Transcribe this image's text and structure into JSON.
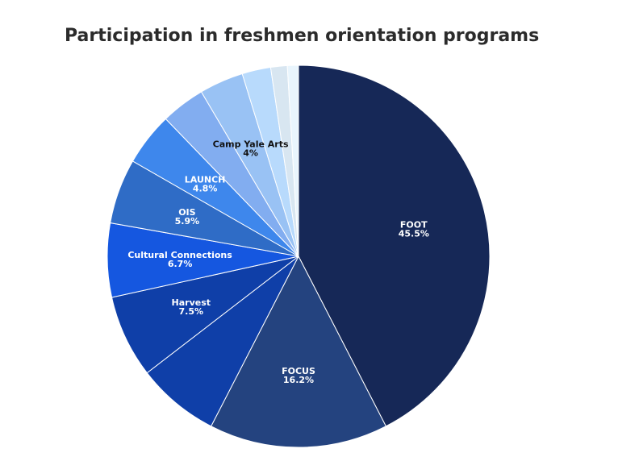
{
  "chart_data": {
    "type": "pie",
    "title": "Participation in freshmen orientation programs",
    "slices": [
      {
        "label": "FOOT",
        "value": 45.5,
        "display": "45.5%",
        "color": "#162857",
        "text_color": "#ffffff",
        "show_label": true
      },
      {
        "label": "FOCUS",
        "value": 16.2,
        "display": "16.2%",
        "color": "#24437f",
        "text_color": "#ffffff",
        "show_label": true
      },
      {
        "label": "",
        "value": 7.5,
        "display": "",
        "color": "#0f3fa8",
        "text_color": "#ffffff",
        "show_label": false
      },
      {
        "label": "Harvest",
        "value": 7.5,
        "display": "7.5%",
        "color": "#0f3fa8",
        "text_color": "#ffffff",
        "show_label": true
      },
      {
        "label": "Cultural Connections",
        "value": 6.7,
        "display": "6.7%",
        "color": "#1557e0",
        "text_color": "#ffffff",
        "show_label": true
      },
      {
        "label": "OIS",
        "value": 5.9,
        "display": "5.9%",
        "color": "#2f6cc6",
        "text_color": "#ffffff",
        "show_label": true
      },
      {
        "label": "LAUNCH",
        "value": 4.8,
        "display": "4.8%",
        "color": "#3e87ec",
        "text_color": "#ffffff",
        "show_label": true
      },
      {
        "label": "",
        "value": 4.0,
        "display": "",
        "color": "#82adf0",
        "text_color": "#111111",
        "show_label": false
      },
      {
        "label": "Camp Yale Arts",
        "value": 4.0,
        "display": "4%",
        "color": "#99c2f4",
        "text_color": "#111111",
        "show_label": true
      },
      {
        "label": "",
        "value": 2.6,
        "display": "",
        "color": "#b8dafc",
        "text_color": "#111111",
        "show_label": false
      },
      {
        "label": "",
        "value": 1.5,
        "display": "",
        "color": "#d8e6f1",
        "text_color": "#111111",
        "show_label": false
      },
      {
        "label": "",
        "value": 1.0,
        "display": "",
        "color": "#e9f5fd",
        "text_color": "#111111",
        "show_label": false
      }
    ]
  }
}
